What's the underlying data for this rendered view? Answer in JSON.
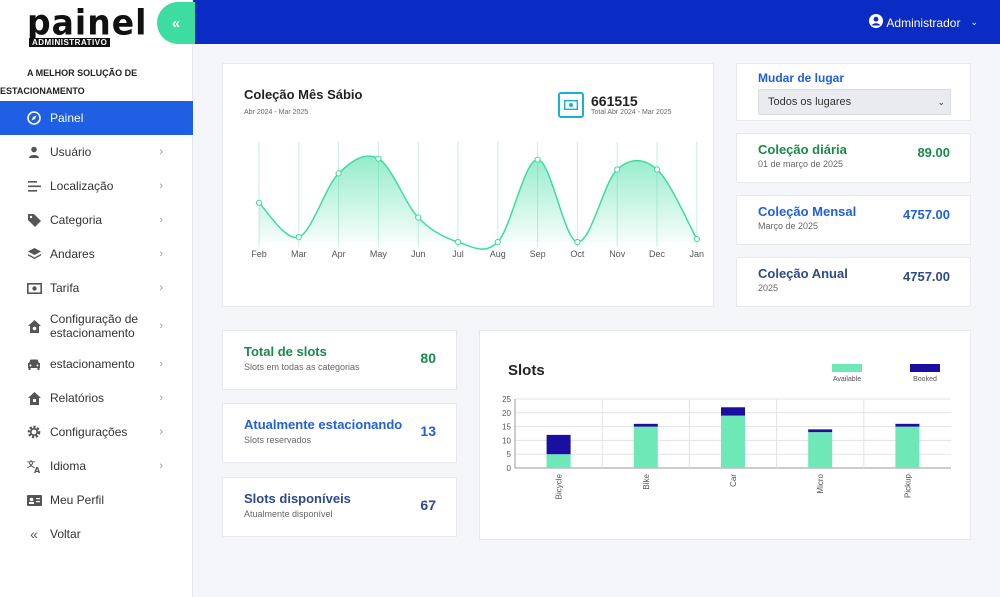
{
  "brand": {
    "logo": "painel",
    "logo_sub": "ADMINISTRATIVO",
    "tagline_1": "A MELHOR SOLUÇÃO DE",
    "tagline_2": "ESTACIONAMENTO"
  },
  "sidebar": {
    "collapse_glyph": "«",
    "items": [
      {
        "label": "Painel",
        "icon": "compass-icon",
        "active": true
      },
      {
        "label": "Usuário",
        "icon": "user-icon"
      },
      {
        "label": "Localização",
        "icon": "list-icon"
      },
      {
        "label": "Categoria",
        "icon": "tag-icon"
      },
      {
        "label": "Andares",
        "icon": "layers-icon"
      },
      {
        "label": "Tarifa",
        "icon": "money-icon"
      },
      {
        "label": "Configuração de estacionamento",
        "icon": "home-gear-icon"
      },
      {
        "label": "estacionamento",
        "icon": "car-icon"
      },
      {
        "label": "Relatórios",
        "icon": "home-report-icon"
      },
      {
        "label": "Configurações",
        "icon": "gear-icon"
      },
      {
        "label": "Idioma",
        "icon": "translate-icon"
      },
      {
        "label": "Meu Perfil",
        "icon": "id-card-icon"
      },
      {
        "label": "Voltar",
        "icon": "double-chevron-left-icon"
      }
    ],
    "chevron": "›"
  },
  "header": {
    "user_label": "Administrador",
    "user_icon": "user-circle-icon",
    "chevron": "⌄"
  },
  "collection_chart": {
    "title": "Coleção Mês Sábio",
    "subtitle": "Abr 2024 - Mar 2025",
    "total": "661515",
    "total_sub": "Total Abr 2024 - Mar 2025",
    "total_icon": "money-icon"
  },
  "location_select": {
    "label": "Mudar de lugar",
    "selected": "Todos os lugares",
    "arrow": "⌄"
  },
  "stats": {
    "daily": {
      "title": "Coleção diária",
      "subtitle": "01 de março de 2025",
      "value": "89.00",
      "color": "#1a8a4a"
    },
    "monthly": {
      "title": "Coleção Mensal",
      "subtitle": "Março de 2025",
      "value": "4757.00",
      "color": "#1f5fe3"
    },
    "annual": {
      "title": "Coleção Anual",
      "subtitle": "2025",
      "value": "4757.00",
      "color": "#2d4a8a"
    }
  },
  "slots": {
    "total": {
      "title": "Total de slots",
      "subtitle": "Slots em todas as categorias",
      "value": "80",
      "color": "#1a8a4a"
    },
    "parked": {
      "title": "Atualmente estacionando",
      "subtitle": "Slots reservados",
      "value": "13",
      "color": "#1f5fe3"
    },
    "available": {
      "title": "Slots disponíveis",
      "subtitle": "Atualmente disponível",
      "value": "67",
      "color": "#2d4a8a"
    }
  },
  "bar_panel": {
    "title": "Slots"
  },
  "colors": {
    "topbar": "#0a2bc4",
    "accent_green": "#3ddca0",
    "line": "#3ddca0",
    "available": "#6ee8b7",
    "booked": "#1a0fa0",
    "active_nav": "#1f5fe3"
  },
  "chart_data": [
    {
      "type": "area",
      "categories": [
        "Feb",
        "Mar",
        "Apr",
        "May",
        "Jun",
        "Jul",
        "Aug",
        "Sep",
        "Oct",
        "Nov",
        "Dec",
        "Jan"
      ],
      "series": [
        {
          "values": [
            40,
            5,
            70,
            85,
            25,
            0,
            0,
            84,
            0,
            74,
            74,
            3
          ]
        }
      ],
      "ylim": [
        0,
        100
      ],
      "grid": "vertical"
    },
    {
      "type": "bar",
      "stacked": true,
      "categories": [
        "Bicycle",
        "Bike",
        "Car",
        "Micro",
        "Pickup"
      ],
      "series": [
        {
          "name": "Available",
          "values": [
            5,
            15,
            19,
            13,
            15
          ]
        },
        {
          "name": "Booked",
          "values": [
            7,
            1,
            3,
            1,
            1
          ]
        }
      ],
      "ylim": [
        0,
        25
      ],
      "yticks": [
        0,
        5,
        10,
        15,
        20,
        25
      ],
      "legend": "top-right"
    }
  ]
}
